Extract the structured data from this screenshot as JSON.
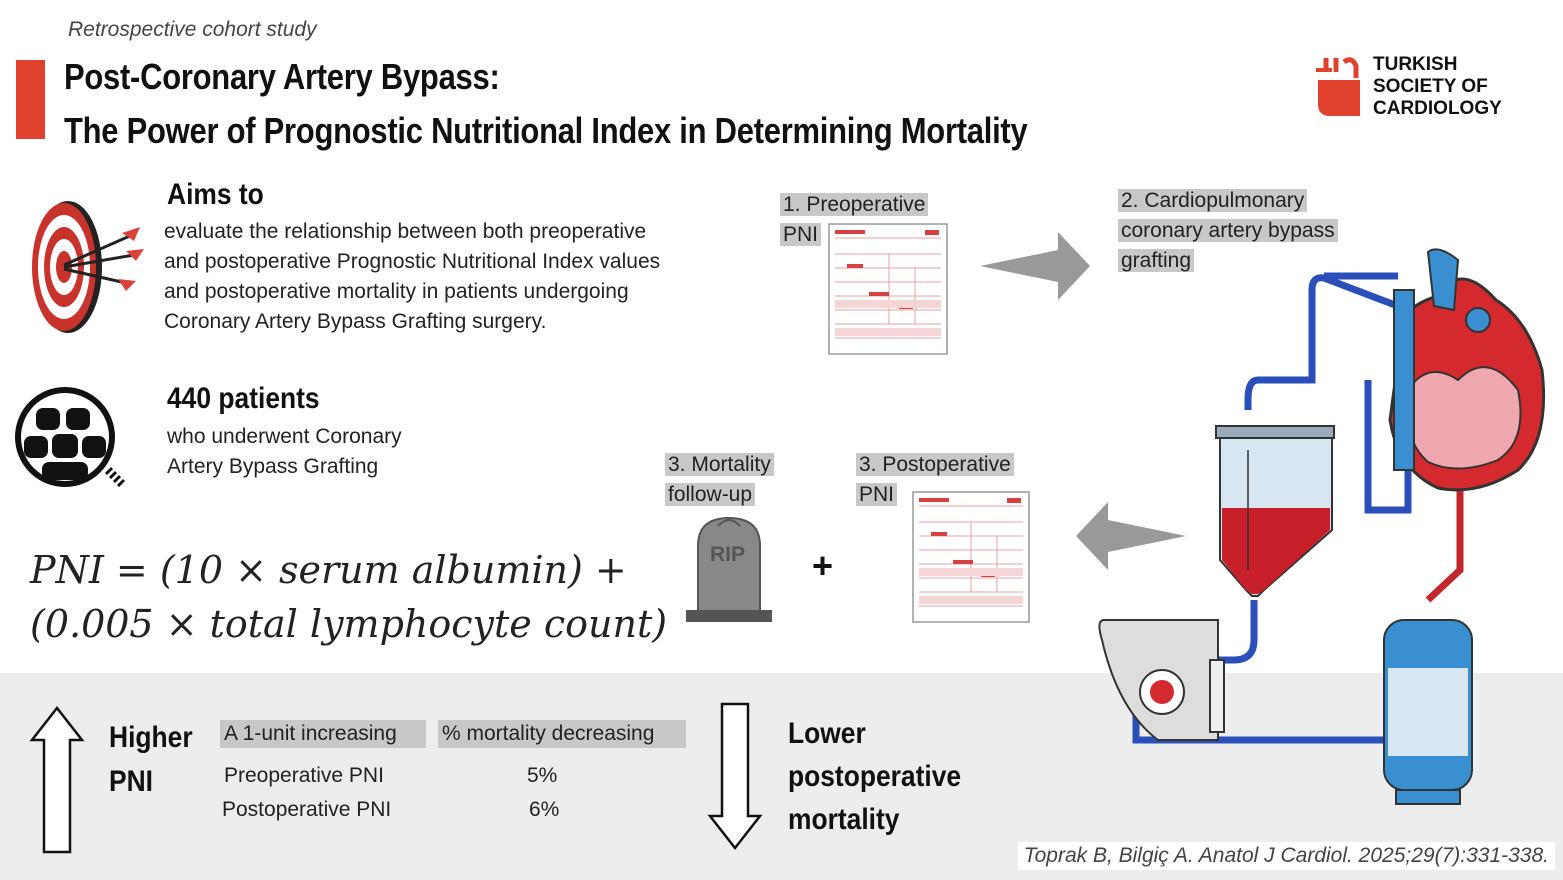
{
  "header": {
    "subtitle": "Retrospective cohort study",
    "title_line1": "Post-Coronary Artery Bypass:",
    "title_line2": "The Power of Prognostic Nutritional Index in Determining Mortality",
    "logo_line1": "TURKISH",
    "logo_line2": "SOCIETY OF",
    "logo_line3": "CARDIOLOGY"
  },
  "aims": {
    "heading": "Aims to",
    "line1": "evaluate the relationship between both preoperative",
    "line2": "and postoperative Prognostic Nutritional Index values",
    "line3": "and postoperative mortality in patients undergoing",
    "line4": "Coronary Artery Bypass Grafting surgery."
  },
  "patients": {
    "heading": "440 patients",
    "line1": "who underwent Coronary",
    "line2": "Artery Bypass Grafting"
  },
  "formula": {
    "line1": "PNI = (10 × serum albumin) +",
    "line2": "(0.005 × total lymphocyte count)"
  },
  "flow": {
    "step1_line1": "1. Preoperative",
    "step1_line2": "PNI",
    "step2_line1": "2. Cardiopulmonary",
    "step2_line2": "coronary artery bypass",
    "step2_line3": "grafting",
    "step3a_line1": "3. Mortality",
    "step3a_line2": "follow-up",
    "step3b_line1": "3. Postoperative",
    "step3b_line2": "PNI",
    "rip": "RIP",
    "plus": "+"
  },
  "results": {
    "higher_line1": "Higher",
    "higher_line2": "PNI",
    "col1_header": "A 1-unit increasing",
    "col2_header": "% mortality decreasing",
    "rows": [
      {
        "label": "Preoperative PNI",
        "value": "5%"
      },
      {
        "label": "Postoperative PNI",
        "value": "6%"
      }
    ],
    "lower_line1": "Lower",
    "lower_line2": "postoperative",
    "lower_line3": "mortality"
  },
  "citation": "Toprak B, Bilgiç A. Anatol J Cardiol. 2025;29(7):331-338.",
  "colors": {
    "accent_red": "#e0412d",
    "label_grey": "#c8c8c8",
    "band_grey": "#ededed",
    "blood_red": "#d42a2f",
    "vein_blue": "#3a8fd0"
  },
  "icons": [
    "target-icon",
    "patients-group-icon",
    "arrow-right-icon",
    "arrow-left-icon",
    "tombstone-icon",
    "lab-form-icon",
    "heart-lung-machine-icon",
    "arrow-up-icon",
    "arrow-down-icon"
  ]
}
